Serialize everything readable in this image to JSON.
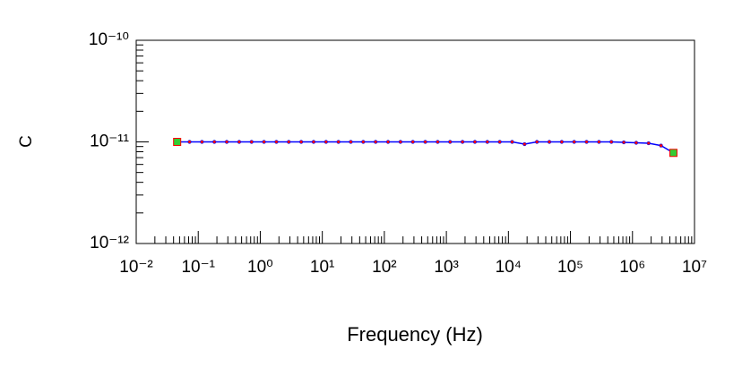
{
  "chart_data": {
    "type": "line",
    "x_label": "Frequency (Hz)",
    "y_label": "C",
    "log_x": true,
    "log_y": true,
    "minor_ticks": true,
    "x": [
      0.0457,
      0.0724,
      0.1148,
      0.182,
      0.288,
      0.457,
      0.724,
      1.148,
      1.82,
      2.88,
      4.57,
      7.24,
      11.48,
      18.2,
      28.8,
      45.7,
      72.4,
      114.8,
      182,
      288,
      457,
      724,
      1148,
      1820,
      2884,
      4571,
      7244,
      11482,
      18197,
      28840,
      45709,
      72444,
      114815,
      181970,
      288403,
      457088,
      724436,
      1148154,
      1819701,
      2884032,
      4570882
    ],
    "series": [
      {
        "name": "C",
        "color": "#0000ff",
        "marker_color": "#ff0000",
        "endpoint_color": "#33cc33",
        "values": [
          1e-11,
          1e-11,
          1e-11,
          1e-11,
          1e-11,
          1e-11,
          1e-11,
          1e-11,
          1e-11,
          1e-11,
          1e-11,
          1e-11,
          1e-11,
          1e-11,
          1e-11,
          1e-11,
          1e-11,
          1e-11,
          1e-11,
          1e-11,
          1e-11,
          1e-11,
          1e-11,
          1e-11,
          1e-11,
          1e-11,
          1e-11,
          1e-11,
          9.5e-12,
          1e-11,
          1e-11,
          1e-11,
          1e-11,
          1e-11,
          1e-11,
          1e-11,
          9.9e-12,
          9.8e-12,
          9.7e-12,
          9.2e-12,
          7.8e-12
        ]
      }
    ],
    "xlim": [
      0.01,
      10000000
    ],
    "xticks": [
      {
        "value": 0.01,
        "label": "10⁻²"
      },
      {
        "value": 0.1,
        "label": "10⁻¹"
      },
      {
        "value": 1,
        "label": "10⁰"
      },
      {
        "value": 10,
        "label": "10¹"
      },
      {
        "value": 100,
        "label": "10²"
      },
      {
        "value": 1000,
        "label": "10³"
      },
      {
        "value": 10000,
        "label": "10⁴"
      },
      {
        "value": 100000,
        "label": "10⁵"
      },
      {
        "value": 1000000,
        "label": "10⁶"
      },
      {
        "value": 10000000,
        "label": "10⁷"
      }
    ],
    "ylim": [
      1e-12,
      1e-10
    ],
    "yticks": [
      {
        "value": 1e-12,
        "label": "10⁻¹²"
      },
      {
        "value": 1e-11,
        "label": "10⁻¹¹"
      },
      {
        "value": 1e-10,
        "label": "10⁻¹⁰"
      }
    ]
  }
}
